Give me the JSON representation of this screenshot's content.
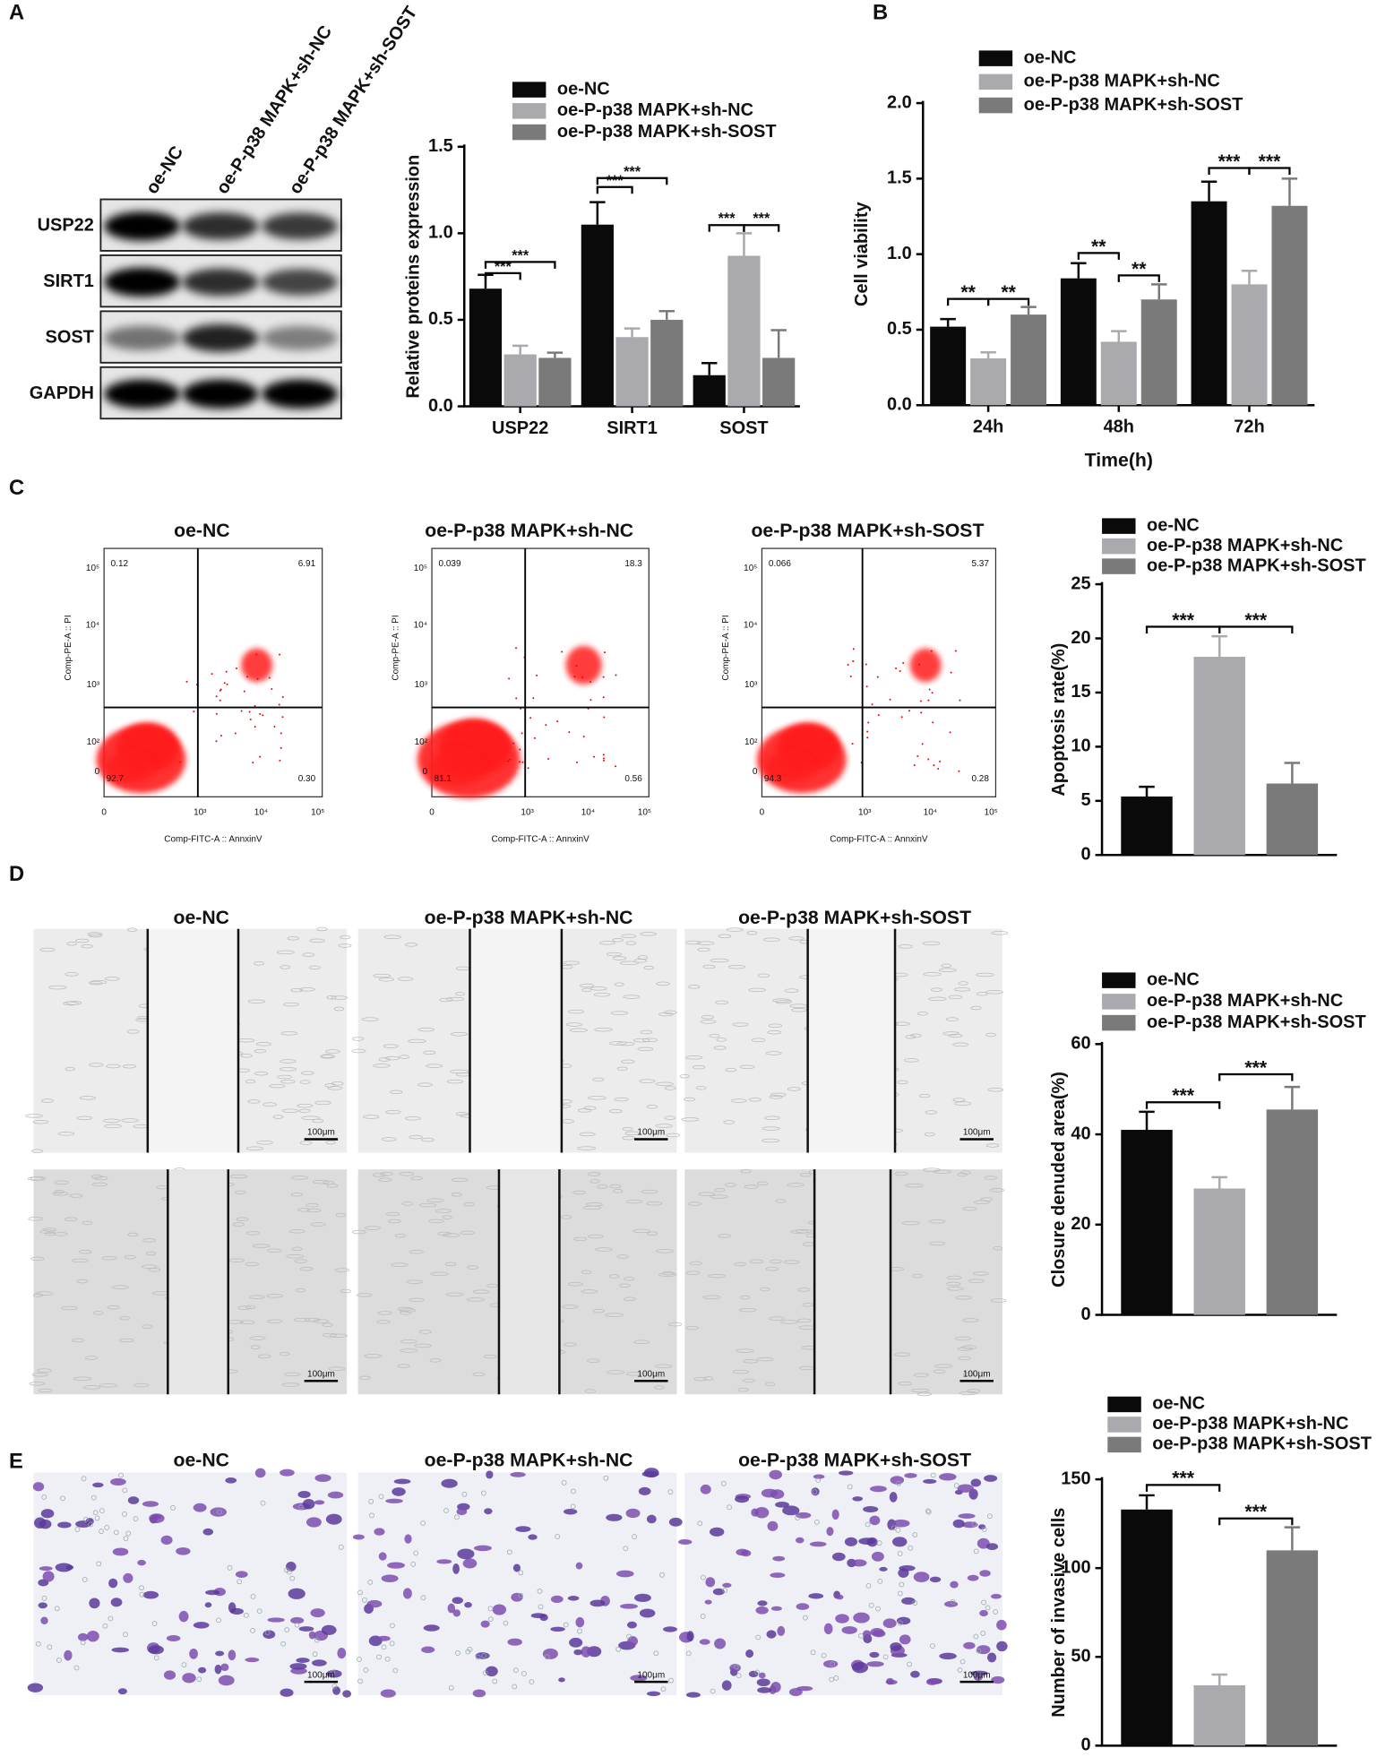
{
  "panel_labels": [
    "A",
    "B",
    "C",
    "D",
    "E"
  ],
  "western_blot": {
    "lanes": [
      "oe-NC",
      "oe-P-p38 MAPK+sh-NC",
      "oe-P-p38 MAPK+sh-SOST"
    ],
    "rows": [
      "USP22",
      "SIRT1",
      "SOST",
      "GAPDH"
    ]
  },
  "flow_cytometry": {
    "titles": [
      "oe-NC",
      "oe-P-p38 MAPK+sh-NC",
      "oe-P-p38 MAPK+sh-SOST"
    ],
    "quadrants": [
      [
        "0.12",
        "6.91",
        "92.7",
        "0.30"
      ],
      [
        "0.039",
        "18.3",
        "81.1",
        "0.56"
      ],
      [
        "0.066",
        "5.37",
        "94.3",
        "0.28"
      ]
    ],
    "x_label": "Comp-FITC-A :: AnnxinV",
    "y_label": "Comp-PE-A :: PI",
    "xticks": [
      "0",
      "10³",
      "10⁴",
      "10⁵"
    ],
    "yticks": [
      "10⁵",
      "10⁴",
      "10³",
      "10²",
      "0"
    ]
  },
  "wound_healing": {
    "titles": [
      "oe-NC",
      "oe-P-p38 MAPK+sh-NC",
      "oe-P-p38 MAPK+sh-SOST"
    ],
    "scale_bar": "100μm"
  },
  "transwell": {
    "titles": [
      "oe-NC",
      "oe-P-p38 MAPK+sh-NC",
      "oe-P-p38 MAPK+sh-SOST"
    ],
    "scale_bar": "100μm"
  },
  "chart_data": [
    {
      "type": "bar",
      "y_label": "Relative proteins expression",
      "categories": [
        "USP22",
        "SIRT1",
        "SOST"
      ],
      "series": [
        {
          "name": "oe-NC",
          "color": "#0a0a0a",
          "values": [
            0.68,
            1.05,
            0.18
          ],
          "errors": [
            0.08,
            0.13,
            0.07
          ]
        },
        {
          "name": "oe-P-p38 MAPK+sh-NC",
          "color": "#a9a9ae",
          "values": [
            0.3,
            0.4,
            0.87
          ],
          "errors": [
            0.05,
            0.05,
            0.13
          ]
        },
        {
          "name": "oe-P-p38 MAPK+sh-SOST",
          "color": "#7a7a7a",
          "values": [
            0.28,
            0.5,
            0.28
          ],
          "errors": [
            0.03,
            0.05,
            0.16
          ]
        }
      ],
      "ylim": [
        0,
        1.5
      ],
      "yticks": [
        {
          "value": 0,
          "label": "0.0"
        },
        0.5,
        {
          "value": 1,
          "label": "1.0"
        },
        1.5
      ],
      "annotations": [
        "***",
        "***",
        "***",
        "***",
        "***",
        "***"
      ]
    },
    {
      "type": "bar",
      "y_label": "Cell viability",
      "x_label": "Time(h)",
      "categories": [
        "24h",
        "48h",
        "72h"
      ],
      "series": [
        {
          "name": "oe-NC",
          "color": "#0a0a0a",
          "values": [
            0.52,
            0.84,
            1.35
          ],
          "errors": [
            0.05,
            0.1,
            0.13
          ]
        },
        {
          "name": "oe-P-p38 MAPK+sh-NC",
          "color": "#a9a9ae",
          "values": [
            0.31,
            0.42,
            0.8
          ],
          "errors": [
            0.04,
            0.07,
            0.09
          ]
        },
        {
          "name": "oe-P-p38 MAPK+sh-SOST",
          "color": "#7a7a7a",
          "values": [
            0.6,
            0.7,
            1.32
          ],
          "errors": [
            0.05,
            0.1,
            0.18
          ]
        }
      ],
      "ylim": [
        0,
        2
      ],
      "yticks": [
        {
          "value": 0,
          "label": "0.0"
        },
        0.5,
        {
          "value": 1,
          "label": "1.0"
        },
        1.5,
        {
          "value": 2,
          "label": "2.0"
        }
      ],
      "annotations": [
        "**",
        "**",
        "**",
        "**",
        "***",
        "***"
      ]
    },
    {
      "type": "bar",
      "y_label": "Apoptosis rate(%)",
      "categories": [
        null
      ],
      "series": [
        {
          "name": "oe-NC",
          "color": "#0a0a0a",
          "values": [
            5.4
          ],
          "errors": [
            0.9
          ]
        },
        {
          "name": "oe-P-p38 MAPK+sh-NC",
          "color": "#a9a9ae",
          "values": [
            18.3
          ],
          "errors": [
            1.9
          ]
        },
        {
          "name": "oe-P-p38 MAPK+sh-SOST",
          "color": "#7a7a7a",
          "values": [
            6.6
          ],
          "errors": [
            1.9
          ]
        }
      ],
      "ylim": [
        0,
        25
      ],
      "yticks": [
        0,
        5,
        10,
        15,
        20,
        25
      ],
      "annotations": [
        "***",
        "***"
      ]
    },
    {
      "type": "bar",
      "y_label": "Closure denuded area(%)",
      "categories": [
        null
      ],
      "series": [
        {
          "name": "oe-NC",
          "color": "#0a0a0a",
          "values": [
            41
          ],
          "errors": [
            4
          ]
        },
        {
          "name": "oe-P-p38 MAPK+sh-NC",
          "color": "#a9a9ae",
          "values": [
            28
          ],
          "errors": [
            2.5
          ]
        },
        {
          "name": "oe-P-p38 MAPK+sh-SOST",
          "color": "#7a7a7a",
          "values": [
            45.5
          ],
          "errors": [
            5
          ]
        }
      ],
      "ylim": [
        0,
        60
      ],
      "yticks": [
        0,
        20,
        40,
        60
      ],
      "annotations": [
        "***",
        "***"
      ]
    },
    {
      "type": "bar",
      "y_label": "Number of invasive cells",
      "categories": [
        null
      ],
      "series": [
        {
          "name": "oe-NC",
          "color": "#0a0a0a",
          "values": [
            133
          ],
          "errors": [
            8
          ]
        },
        {
          "name": "oe-P-p38 MAPK+sh-NC",
          "color": "#a9a9ae",
          "values": [
            34
          ],
          "errors": [
            6
          ]
        },
        {
          "name": "oe-P-p38 MAPK+sh-SOST",
          "color": "#7a7a7a",
          "values": [
            110
          ],
          "errors": [
            13
          ]
        }
      ],
      "ylim": [
        0,
        150
      ],
      "yticks": [
        0,
        50,
        100,
        150
      ],
      "annotations": [
        "***",
        "***"
      ]
    }
  ]
}
